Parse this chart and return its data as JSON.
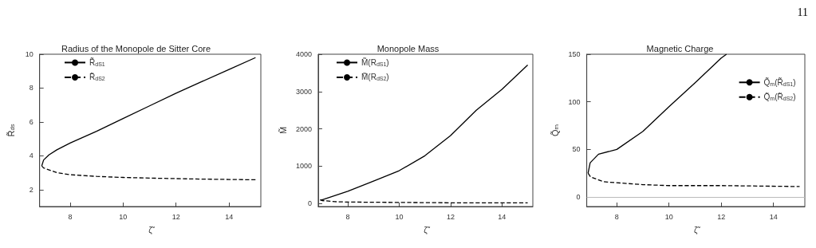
{
  "chart_data": [
    {
      "type": "line",
      "title": "Radius of the Monopole de Sitter Core",
      "xlabel": "ζ̃",
      "ylabel": "R̃$_{ds}$",
      "xlim": [
        6.85,
        15.2
      ],
      "xticks": [
        8,
        10,
        12,
        14
      ],
      "ylim": [
        1,
        10
      ],
      "yticks": [
        2,
        4,
        6,
        8,
        10
      ],
      "legend": "top left",
      "marker": "none",
      "grid": false,
      "series": [
        {
          "name": "R̃$_{dS1}$",
          "color": "#000000",
          "line_style": "solid",
          "x": [
            6.93,
            7.0,
            7.2,
            7.5,
            8,
            9,
            10,
            11,
            12,
            13,
            14,
            15
          ],
          "values": [
            3.4,
            3.75,
            4.05,
            4.35,
            4.75,
            5.45,
            6.2,
            6.95,
            7.7,
            8.4,
            9.1,
            9.8
          ]
        },
        {
          "name": "R̃$_{dS2}$",
          "color": "#000000",
          "line_style": "dashed",
          "x": [
            6.93,
            7.0,
            7.5,
            8,
            9,
            10,
            11,
            12,
            13,
            14,
            15
          ],
          "values": [
            3.4,
            3.28,
            3.0,
            2.88,
            2.78,
            2.72,
            2.68,
            2.65,
            2.62,
            2.6,
            2.58
          ]
        }
      ]
    },
    {
      "type": "line",
      "title": "Monopole Mass",
      "xlabel": "ζ̃",
      "ylabel": "M̃",
      "xlim": [
        6.85,
        15.2
      ],
      "xticks": [
        8,
        10,
        12,
        14
      ],
      "ylim": [
        -80,
        4000
      ],
      "yticks": [
        0,
        1000,
        2000,
        3000,
        4000
      ],
      "legend": "top left",
      "marker": "none",
      "grid": false,
      "series": [
        {
          "name": "M̃(R$_{dS1}$)",
          "color": "#000000",
          "line_style": "solid",
          "x": [
            6.93,
            7,
            8,
            9,
            10,
            11,
            12,
            13,
            14,
            15
          ],
          "values": [
            100,
            100,
            330,
            600,
            880,
            1280,
            1820,
            2500,
            3060,
            3710
          ]
        },
        {
          "name": "M̃(R$_{dS2}$)",
          "color": "#000000",
          "line_style": "dashed",
          "x": [
            6.93,
            7,
            7.5,
            8,
            10,
            12,
            15
          ],
          "values": [
            100,
            80,
            50,
            40,
            30,
            20,
            20
          ]
        }
      ]
    },
    {
      "type": "line",
      "title": "Magnetic Charge",
      "xlabel": "ζ̃",
      "ylabel": "Q̃$_{m}$",
      "xlim": [
        6.85,
        15.2
      ],
      "xticks": [
        8,
        10,
        12,
        14
      ],
      "ylim": [
        -10,
        150
      ],
      "yticks": [
        0,
        50,
        100,
        150
      ],
      "legend": "top right",
      "marker": "none",
      "grid": false,
      "ref_lines": [
        {
          "axis": "y",
          "value": 0,
          "color": "#bbbbbb"
        }
      ],
      "annotations": [
        "11"
      ],
      "series": [
        {
          "name": "Q̃$_{m}$(R̃$_{dS1}$)",
          "color": "#000000",
          "line_style": "solid",
          "x": [
            6.9,
            6.98,
            7.3,
            8,
            9,
            10,
            11,
            12,
            12.2
          ],
          "values": [
            25,
            36,
            45,
            50,
            69,
            95,
            120,
            146,
            150
          ]
        },
        {
          "name": "Q̃$_{m}$(R̃$_{dS2}$)",
          "color": "#000000",
          "line_style": "dashed",
          "x": [
            6.9,
            7,
            7.5,
            8,
            9,
            10,
            12,
            15
          ],
          "values": [
            25,
            21,
            16,
            15,
            13,
            12,
            12,
            11
          ]
        }
      ]
    }
  ]
}
